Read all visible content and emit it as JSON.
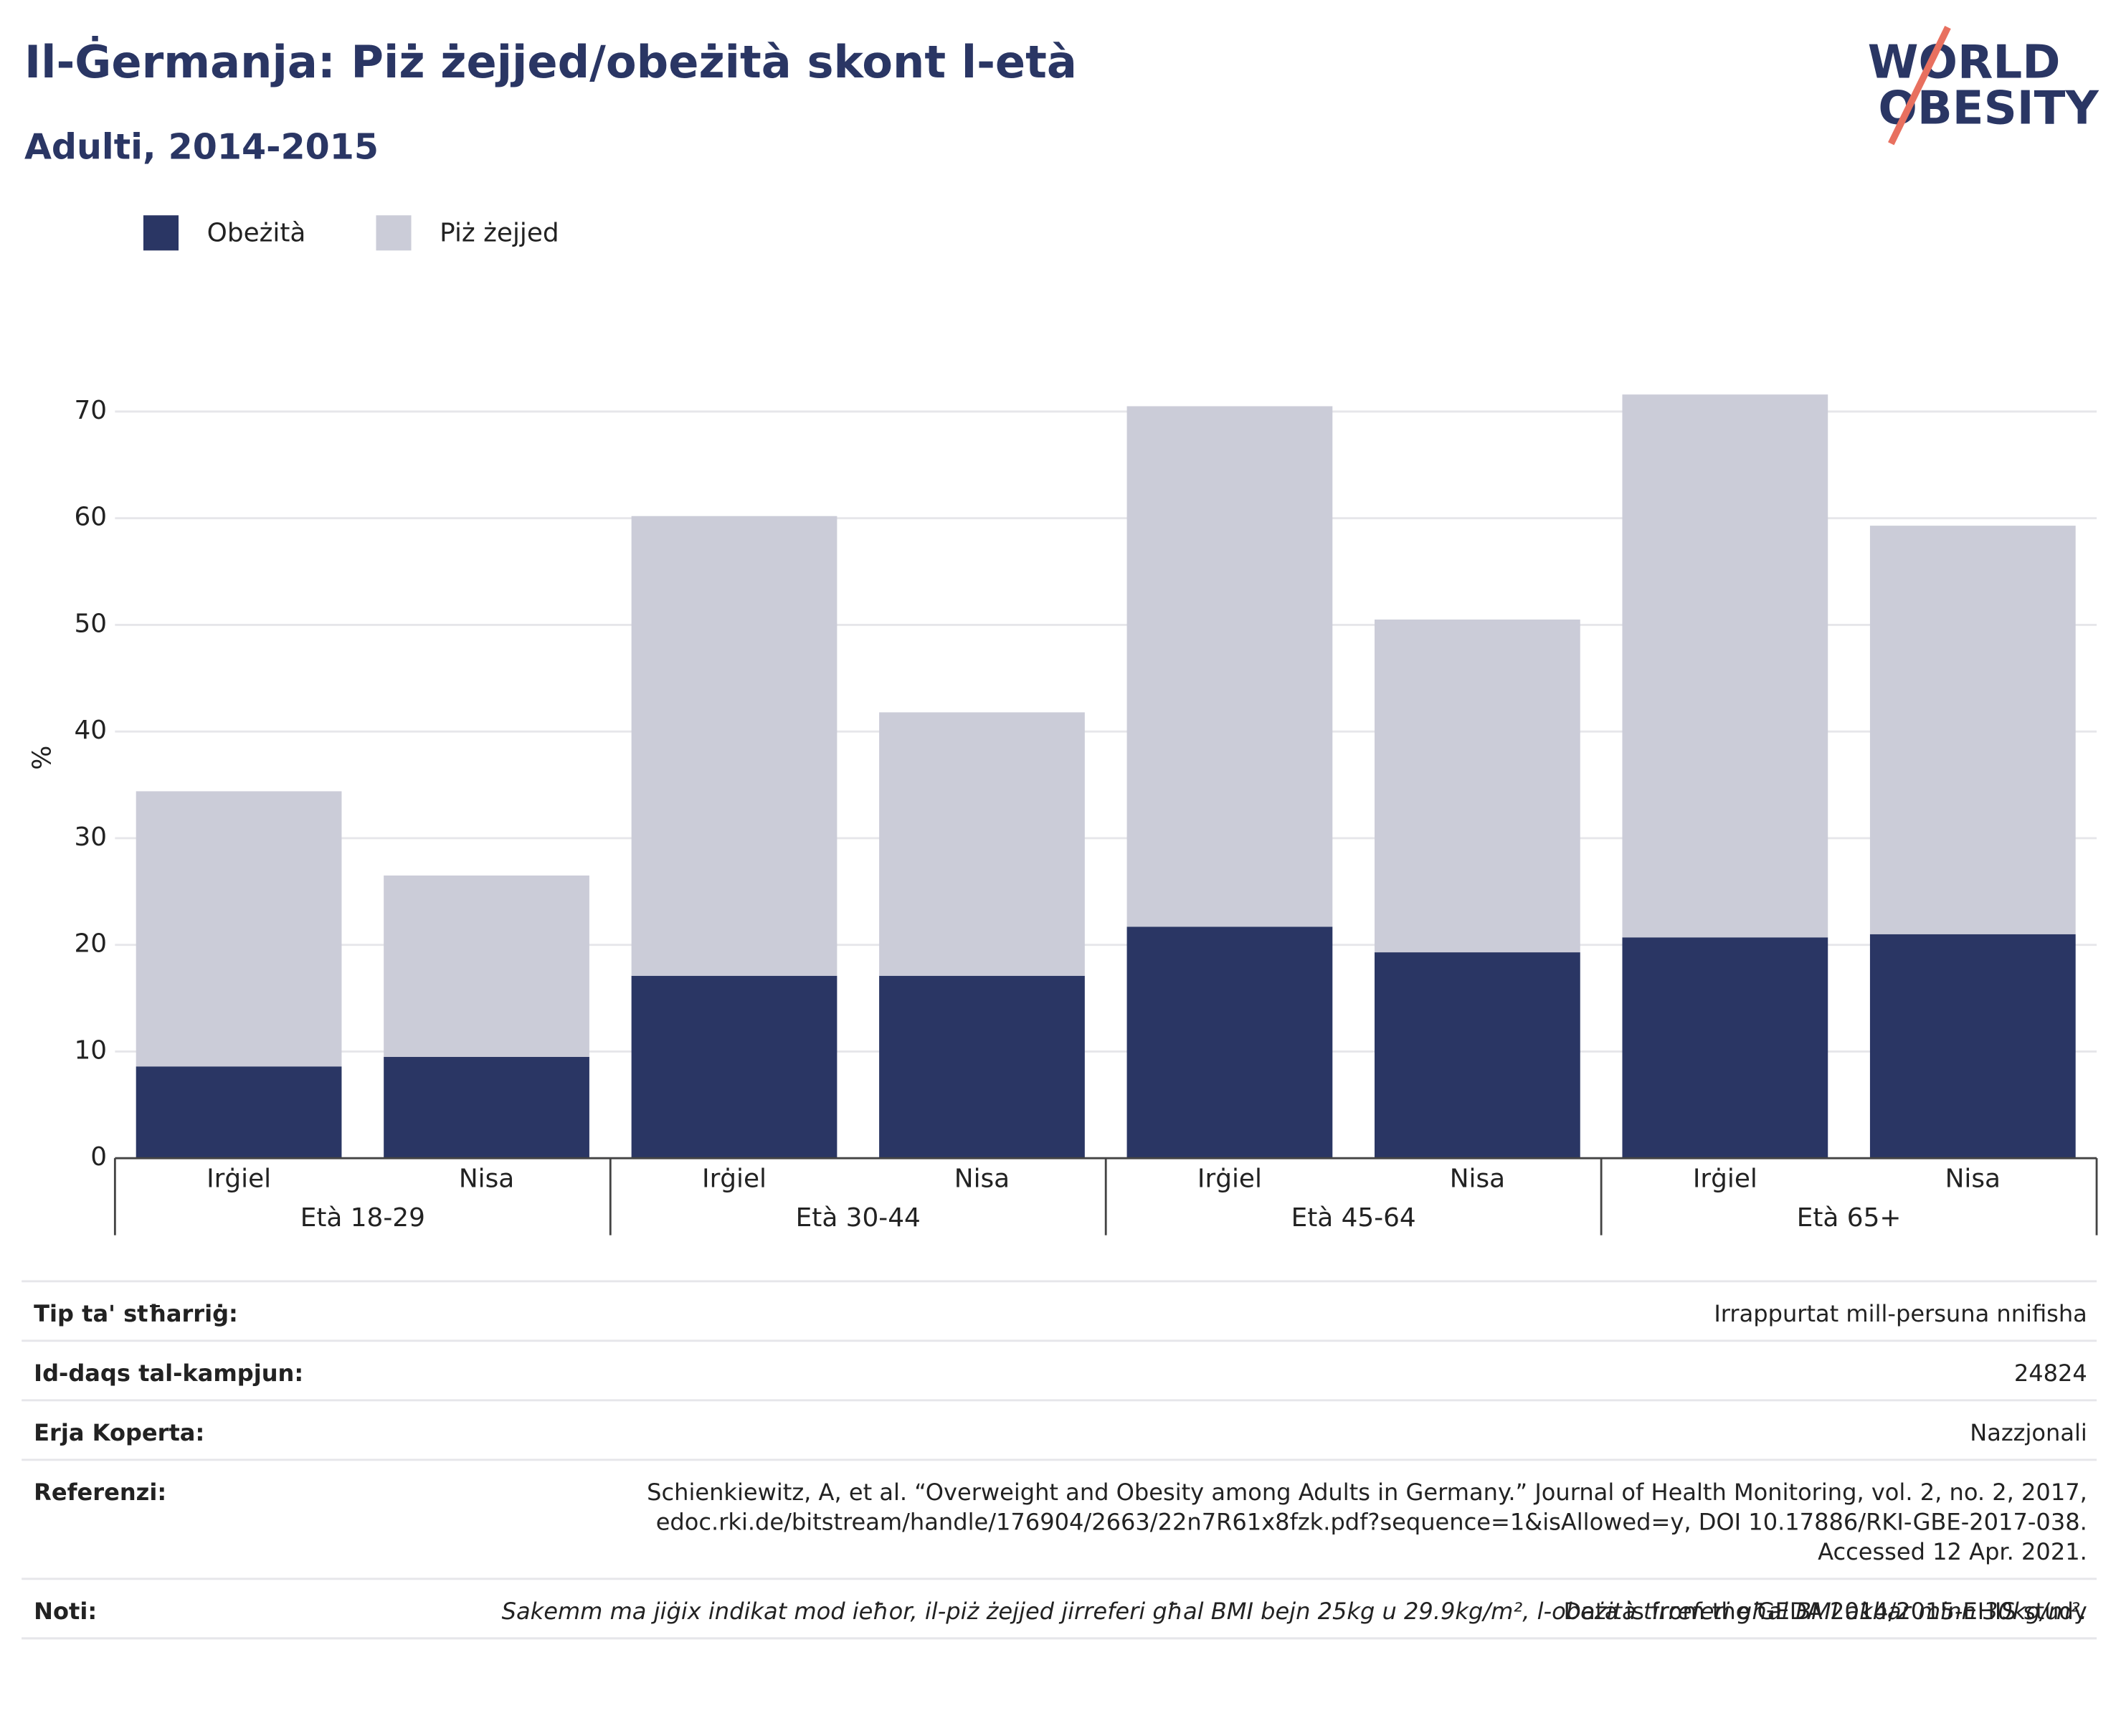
{
  "chart_data": {
    "type": "stacked_bar",
    "title": "Il-Ġermanja: Piż żejjed/obeżità skont l-età",
    "subtitle": "Adulti, 2014-2015",
    "y_label": "%",
    "categories": [
      "Irġiel",
      "Nisa",
      "Irġiel",
      "Nisa",
      "Irġiel",
      "Nisa",
      "Irġiel",
      "Nisa"
    ],
    "groups": [
      "Età 18-29",
      "Età 30-44",
      "Età 45-64",
      "Età 65+"
    ],
    "series": [
      {
        "name": "Obeżità",
        "color": "#2a3664",
        "values": [
          8.6,
          9.5,
          17.1,
          17.1,
          21.7,
          19.3,
          20.7,
          21.0
        ]
      },
      {
        "name": "Piż żejjed",
        "color": "#cbccd8",
        "values": [
          25.8,
          17.0,
          43.1,
          24.7,
          48.8,
          31.2,
          50.9,
          38.3
        ]
      }
    ],
    "ylim": [
      0,
      78
    ],
    "yticks": [
      0,
      10,
      20,
      30,
      40,
      50,
      60,
      70
    ],
    "grid": true
  },
  "logo": {
    "line1": "WORLD",
    "line2": "OBESITY"
  },
  "table": {
    "rows": [
      {
        "label": "Tip ta' stħarriġ:",
        "lines": [
          "Irrappurtat mill-persuna nnifisha"
        ]
      },
      {
        "label": "Id-daqs tal-kampjun:",
        "lines": [
          "24824"
        ]
      },
      {
        "label": "Erja Koperta:",
        "lines": [
          "Nazzjonali"
        ]
      },
      {
        "label": "Referenzi:",
        "lines": [
          "Schienkiewitz, A, et al. “Overweight and Obesity among Adults in Germany.” Journal of Health Monitoring, vol. 2, no. 2, 2017,",
          "edoc.rki.de/bitstream/handle/176904/2663/22n7R61x8fzk.pdf?sequence=1&isAllowed=y, DOI 10.17886/RKI-GBE-2017-038.",
          "Accessed 12 Apr. 2021."
        ]
      },
      {
        "label": "Noti:",
        "lines": [
          "Data is from the GEDA 2014/2015-EHIS study"
        ]
      }
    ],
    "footnote": "Sakemm ma jiġix indikat mod ieħor, il-piż żejjed jirreferi għal BMI bejn 25kg u 29.9kg/m², l-obeżità tirreferi għal BMI akbar minn 30kg/m²."
  }
}
